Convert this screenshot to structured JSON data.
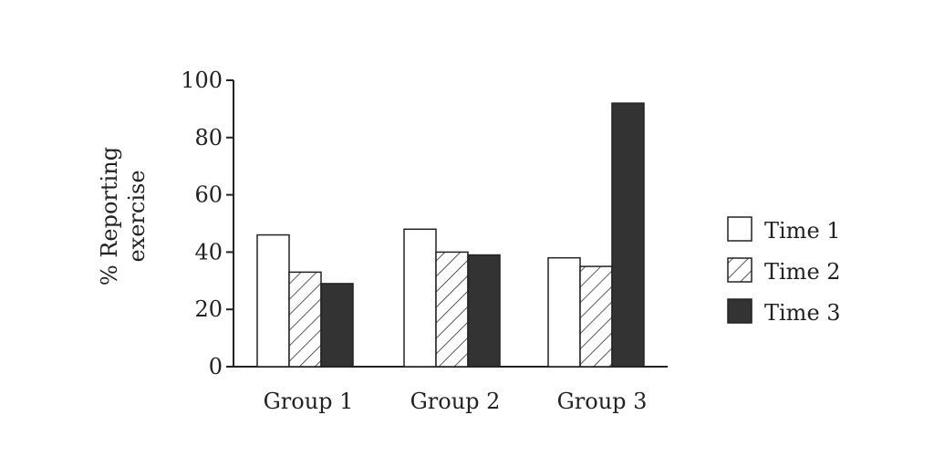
{
  "chart_data": {
    "type": "bar",
    "categories": [
      "Group 1",
      "Group 2",
      "Group 3"
    ],
    "series": [
      {
        "name": "Time 1",
        "values": [
          46,
          48,
          38
        ],
        "pattern": "white"
      },
      {
        "name": "Time 2",
        "values": [
          33,
          40,
          35
        ],
        "pattern": "hatch"
      },
      {
        "name": "Time 3",
        "values": [
          29,
          39,
          92
        ],
        "pattern": "dark"
      }
    ],
    "ylabel": [
      "% Reporting",
      "exercise"
    ],
    "ylim": [
      0,
      100
    ],
    "yticks": [
      0,
      20,
      40,
      60,
      80,
      100
    ],
    "grid": false,
    "legend": "right",
    "colors": {
      "dark": "#333333",
      "outline": "#222222",
      "white": "#ffffff"
    }
  }
}
